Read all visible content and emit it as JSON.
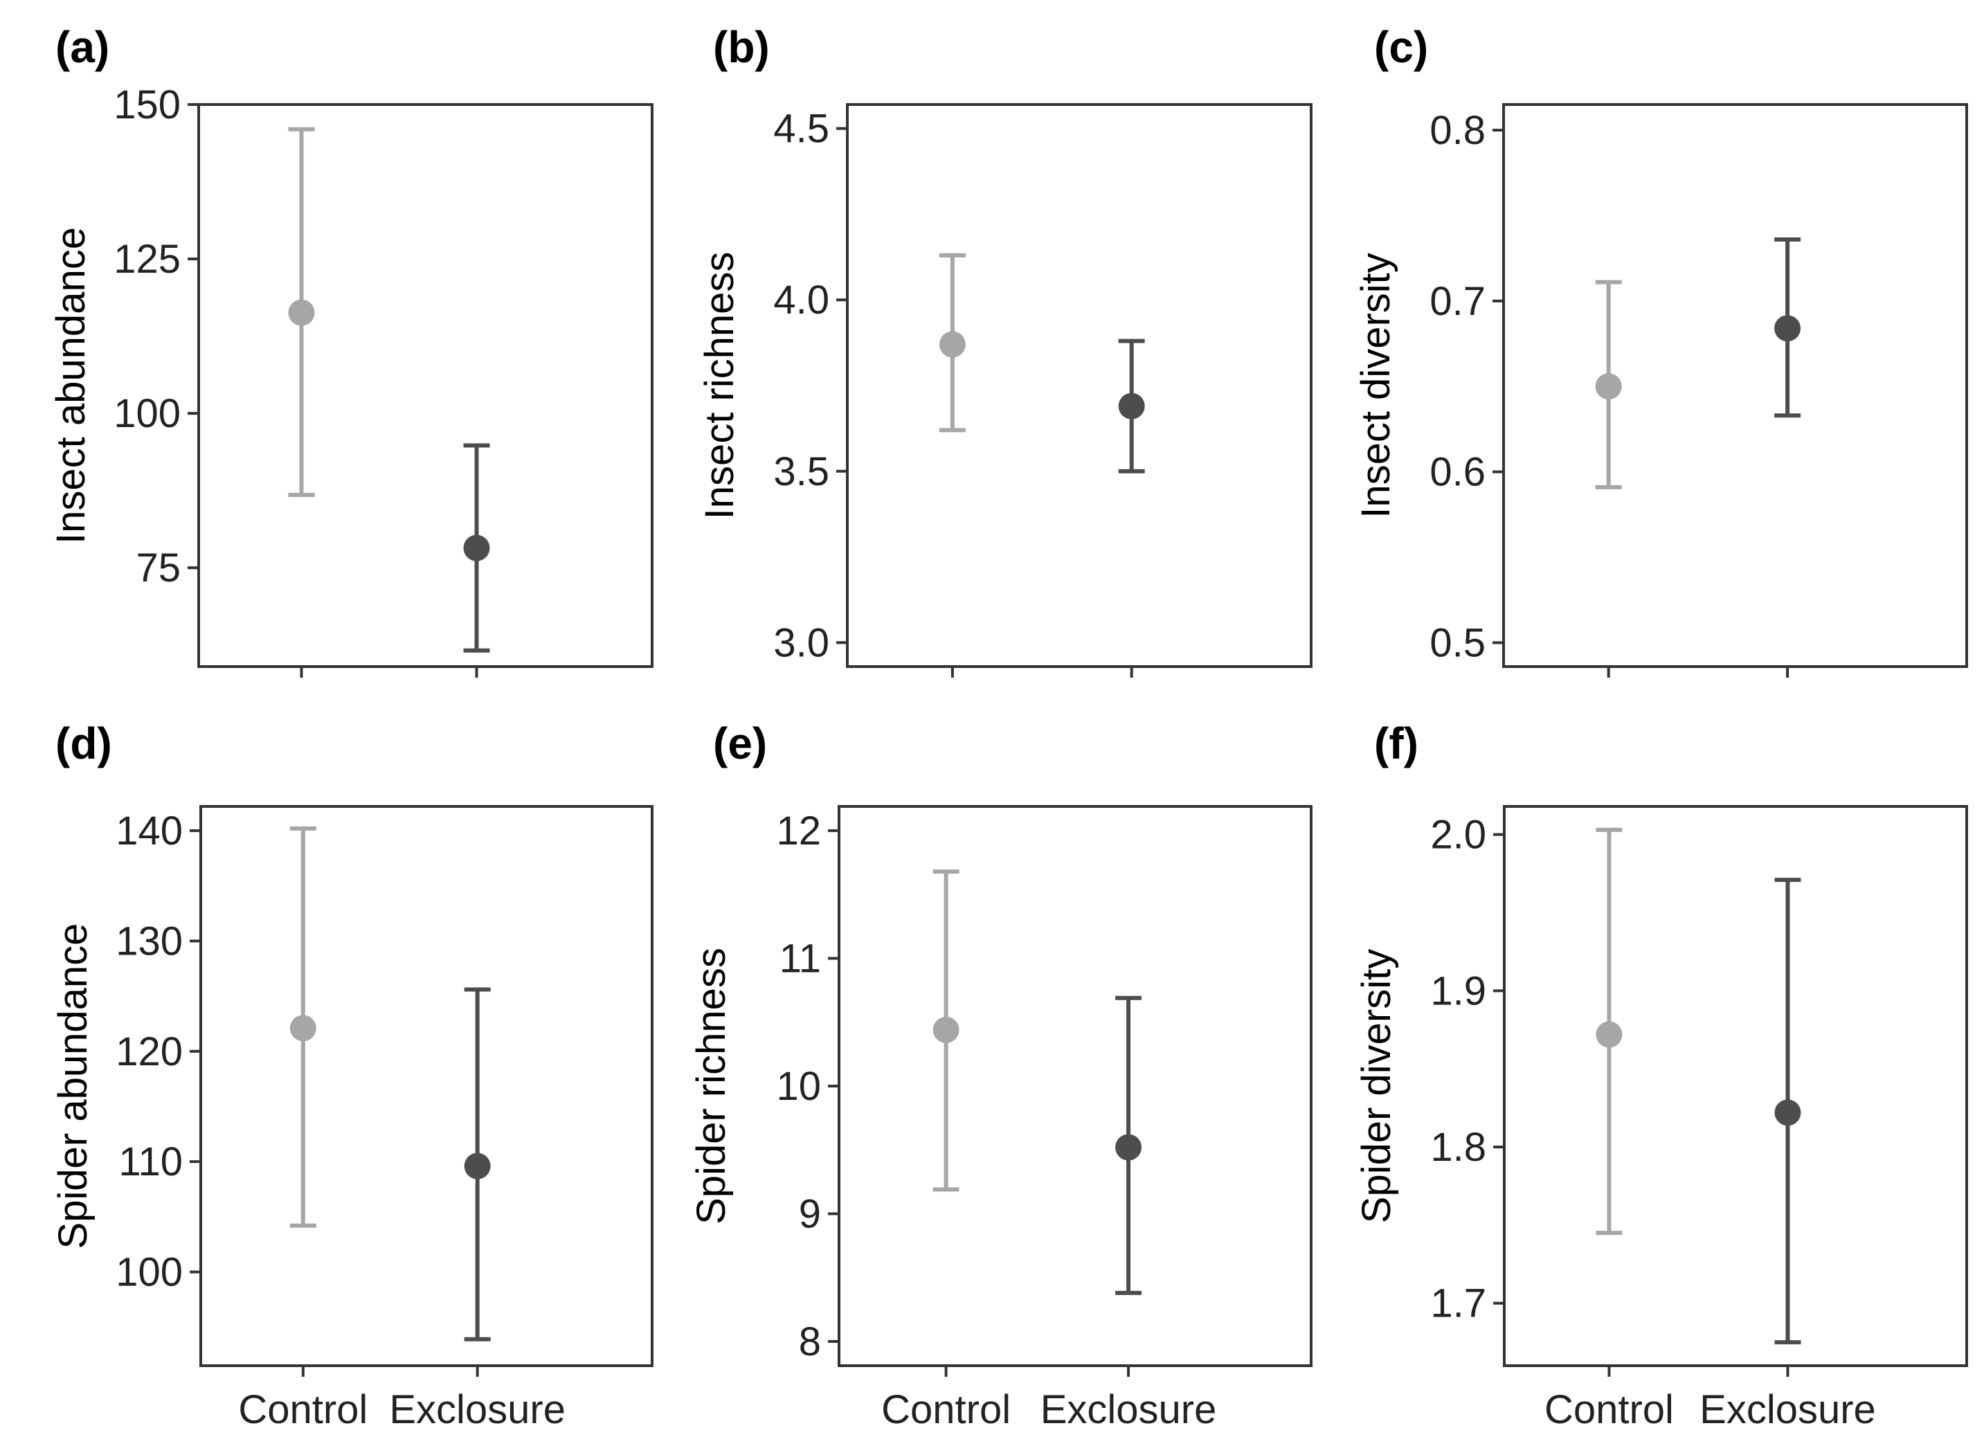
{
  "chart_data": [
    {
      "type": "scatter",
      "panel": "(a)",
      "ylabel": "Insect abundance",
      "categories": [
        "Control",
        "Exclosure"
      ],
      "show_x_labels": false,
      "ylim": [
        59,
        150
      ],
      "yticks": [
        75,
        100,
        125,
        150
      ],
      "tick_labels": [
        "75",
        "100",
        "125",
        "150"
      ],
      "points": [
        {
          "x": "Control",
          "mean": 116.3,
          "lower": 86.8,
          "upper": 146.0,
          "color": "#a6a6a6"
        },
        {
          "x": "Exclosure",
          "mean": 78.2,
          "lower": 61.6,
          "upper": 94.8,
          "color": "#4d4d4d"
        }
      ]
    },
    {
      "type": "scatter",
      "panel": "(b)",
      "ylabel": "Insect richness",
      "categories": [
        "Control",
        "Exclosure"
      ],
      "show_x_labels": false,
      "ylim": [
        2.93,
        4.57
      ],
      "yticks": [
        3.0,
        3.5,
        4.0,
        4.5
      ],
      "tick_labels": [
        "3.0",
        "3.5",
        "4.0",
        "4.5"
      ],
      "points": [
        {
          "x": "Control",
          "mean": 3.87,
          "lower": 3.62,
          "upper": 4.13,
          "color": "#a6a6a6"
        },
        {
          "x": "Exclosure",
          "mean": 3.69,
          "lower": 3.5,
          "upper": 3.88,
          "color": "#4d4d4d"
        }
      ]
    },
    {
      "type": "scatter",
      "panel": "(c)",
      "ylabel": "Insect diversity",
      "categories": [
        "Control",
        "Exclosure"
      ],
      "show_x_labels": false,
      "ylim": [
        0.486,
        0.815
      ],
      "yticks": [
        0.5,
        0.6,
        0.7,
        0.8
      ],
      "tick_labels": [
        "0.5",
        "0.6",
        "0.7",
        "0.8"
      ],
      "points": [
        {
          "x": "Control",
          "mean": 0.65,
          "lower": 0.591,
          "upper": 0.711,
          "color": "#a6a6a6"
        },
        {
          "x": "Exclosure",
          "mean": 0.684,
          "lower": 0.633,
          "upper": 0.736,
          "color": "#4d4d4d"
        }
      ]
    },
    {
      "type": "scatter",
      "panel": "(d)",
      "ylabel": "Spider abundance",
      "categories": [
        "Control",
        "Exclosure"
      ],
      "show_x_labels": true,
      "ylim": [
        91.5,
        142.2
      ],
      "yticks": [
        100,
        110,
        120,
        130,
        140
      ],
      "tick_labels": [
        "100",
        "110",
        "120",
        "130",
        "140"
      ],
      "points": [
        {
          "x": "Control",
          "mean": 122.1,
          "lower": 104.2,
          "upper": 140.2,
          "color": "#a6a6a6"
        },
        {
          "x": "Exclosure",
          "mean": 109.6,
          "lower": 93.9,
          "upper": 125.6,
          "color": "#4d4d4d"
        }
      ]
    },
    {
      "type": "scatter",
      "panel": "(e)",
      "ylabel": "Spider richness",
      "categories": [
        "Control",
        "Exclosure"
      ],
      "show_x_labels": true,
      "ylim": [
        7.81,
        12.19
      ],
      "yticks": [
        8,
        9,
        10,
        11,
        12
      ],
      "tick_labels": [
        "8",
        "9",
        "10",
        "11",
        "12"
      ],
      "points": [
        {
          "x": "Control",
          "mean": 10.44,
          "lower": 9.19,
          "upper": 11.68,
          "color": "#a6a6a6"
        },
        {
          "x": "Exclosure",
          "mean": 9.52,
          "lower": 8.38,
          "upper": 10.69,
          "color": "#4d4d4d"
        }
      ]
    },
    {
      "type": "scatter",
      "panel": "(f)",
      "ylabel": "Spider diversity",
      "categories": [
        "Control",
        "Exclosure"
      ],
      "show_x_labels": true,
      "ylim": [
        1.66,
        2.018
      ],
      "yticks": [
        1.7,
        1.8,
        1.9,
        2.0
      ],
      "tick_labels": [
        "1.7",
        "1.8",
        "1.9",
        "2.0"
      ],
      "points": [
        {
          "x": "Control",
          "mean": 1.872,
          "lower": 1.745,
          "upper": 2.003,
          "color": "#a6a6a6"
        },
        {
          "x": "Exclosure",
          "mean": 1.822,
          "lower": 1.675,
          "upper": 1.971,
          "color": "#4d4d4d"
        }
      ]
    }
  ]
}
